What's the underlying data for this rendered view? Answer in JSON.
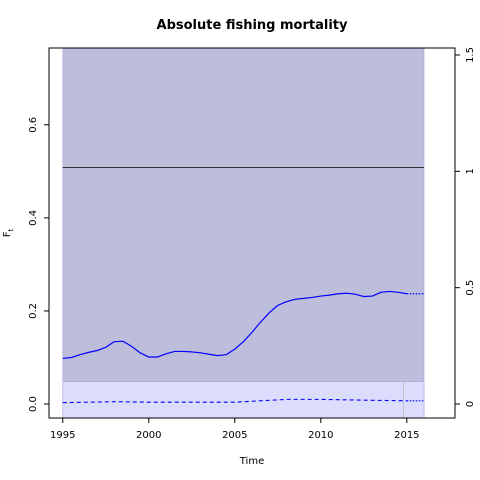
{
  "chart_data": {
    "type": "line",
    "title": "Absolute fishing mortality",
    "xlabel": "Time",
    "ylabel": "F",
    "ylabel_subscript": "t",
    "y2label": "",
    "xlim": [
      1994.2,
      2017.8
    ],
    "ylim": [
      -0.03,
      0.765
    ],
    "y2lim": [
      -0.06,
      1.53
    ],
    "x_ticks": [
      1995,
      2000,
      2005,
      2010,
      2015
    ],
    "x_tick_labels": [
      "1995",
      "2000",
      "2005",
      "2010",
      "2015"
    ],
    "y_ticks": [
      0.0,
      0.2,
      0.4,
      0.6
    ],
    "y_tick_labels": [
      "0.0",
      "0.2",
      "0.4",
      "0.6"
    ],
    "y2_ticks": [
      0,
      0.5,
      1,
      1.5
    ],
    "y2_tick_labels": [
      "0",
      "0.5",
      "1",
      "1.5"
    ],
    "series": [
      {
        "style": "solid-blue",
        "x": [
          1995,
          1995.5,
          1996,
          1996.5,
          1997,
          1997.5,
          1998,
          1998.5,
          1999,
          1999.5,
          2000,
          2000.5,
          2001,
          2001.5,
          2002,
          2002.5,
          2003,
          2003.5,
          2004,
          2004.5,
          2005,
          2005.5,
          2006,
          2006.5,
          2007,
          2007.5,
          2008,
          2008.5,
          2009,
          2009.5,
          2010,
          2010.5,
          2011,
          2011.5,
          2012,
          2012.5,
          2013,
          2013.5,
          2014,
          2014.5,
          2015
        ],
        "y": [
          0.098,
          0.1,
          0.106,
          0.111,
          0.115,
          0.122,
          0.134,
          0.135,
          0.124,
          0.11,
          0.101,
          0.101,
          0.108,
          0.113,
          0.113,
          0.112,
          0.11,
          0.107,
          0.104,
          0.106,
          0.118,
          0.134,
          0.154,
          0.176,
          0.196,
          0.212,
          0.22,
          0.225,
          0.227,
          0.229,
          0.232,
          0.234,
          0.237,
          0.238,
          0.236,
          0.231,
          0.232,
          0.24,
          0.242,
          0.24,
          0.237
        ]
      },
      {
        "style": "dotted-blue-prediction",
        "x": [
          2015,
          2016
        ],
        "y": [
          0.237,
          0.237
        ]
      },
      {
        "style": "dashed-blue",
        "x": [
          1995,
          1998,
          2000,
          2003,
          2005,
          2008,
          2010,
          2013,
          2015
        ],
        "y": [
          0.003,
          0.005,
          0.004,
          0.004,
          0.004,
          0.01,
          0.01,
          0.008,
          0.007
        ]
      },
      {
        "style": "dotted-blue-dashed-prediction",
        "x": [
          2015,
          2016
        ],
        "y": [
          0.007,
          0.007
        ]
      }
    ],
    "bands": [
      {
        "name": "outer",
        "x": [
          1995,
          2016
        ],
        "ymin": -0.03,
        "ymax": 0.765,
        "color": "#BDBEDC"
      },
      {
        "name": "inner",
        "x": [
          1995,
          2016
        ],
        "ymin": -0.03,
        "ymax": 0.048,
        "color": "#DCDCFC"
      }
    ],
    "hline": {
      "y": 0.508,
      "color": "#000000"
    },
    "vline": {
      "x": 2014.8,
      "color": "#BBBBBB"
    },
    "grid": false,
    "colors": {
      "line": "#0000FF",
      "outer_band": "#BDBEDC",
      "inner_band": "#DCDCFC",
      "axis": "#000000"
    }
  }
}
